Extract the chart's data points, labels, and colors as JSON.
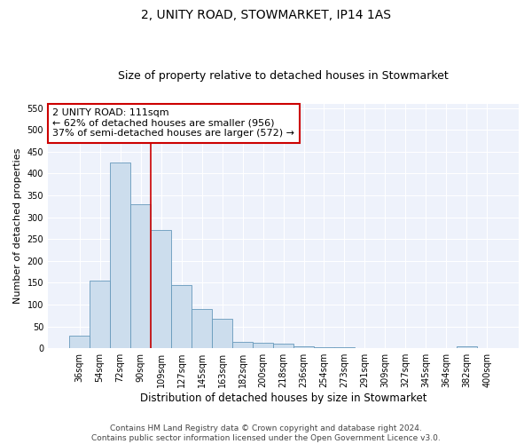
{
  "title": "2, UNITY ROAD, STOWMARKET, IP14 1AS",
  "subtitle": "Size of property relative to detached houses in Stowmarket",
  "xlabel": "Distribution of detached houses by size in Stowmarket",
  "ylabel": "Number of detached properties",
  "categories": [
    "36sqm",
    "54sqm",
    "72sqm",
    "90sqm",
    "109sqm",
    "127sqm",
    "145sqm",
    "163sqm",
    "182sqm",
    "200sqm",
    "218sqm",
    "236sqm",
    "254sqm",
    "273sqm",
    "291sqm",
    "309sqm",
    "327sqm",
    "345sqm",
    "364sqm",
    "382sqm",
    "400sqm"
  ],
  "values": [
    28,
    155,
    425,
    330,
    270,
    145,
    90,
    68,
    15,
    12,
    10,
    5,
    2,
    2,
    1,
    1,
    1,
    1,
    1,
    5,
    1
  ],
  "bar_color": "#ccdded",
  "bar_edgecolor": "#6699bb",
  "vline_index": 4,
  "vline_color": "#cc0000",
  "annotation_line1": "2 UNITY ROAD: 111sqm",
  "annotation_line2": "← 62% of detached houses are smaller (956)",
  "annotation_line3": "37% of semi-detached houses are larger (572) →",
  "annotation_box_facecolor": "#ffffff",
  "annotation_box_edgecolor": "#cc0000",
  "ylim": [
    0,
    560
  ],
  "yticks": [
    0,
    50,
    100,
    150,
    200,
    250,
    300,
    350,
    400,
    450,
    500,
    550
  ],
  "plot_bg_color": "#eef2fb",
  "fig_bg_color": "#ffffff",
  "grid_color": "#ffffff",
  "footer_text": "Contains HM Land Registry data © Crown copyright and database right 2024.\nContains public sector information licensed under the Open Government Licence v3.0.",
  "title_fontsize": 10,
  "subtitle_fontsize": 9,
  "xlabel_fontsize": 8.5,
  "ylabel_fontsize": 8,
  "tick_fontsize": 7,
  "annotation_fontsize": 8,
  "footer_fontsize": 6.5
}
